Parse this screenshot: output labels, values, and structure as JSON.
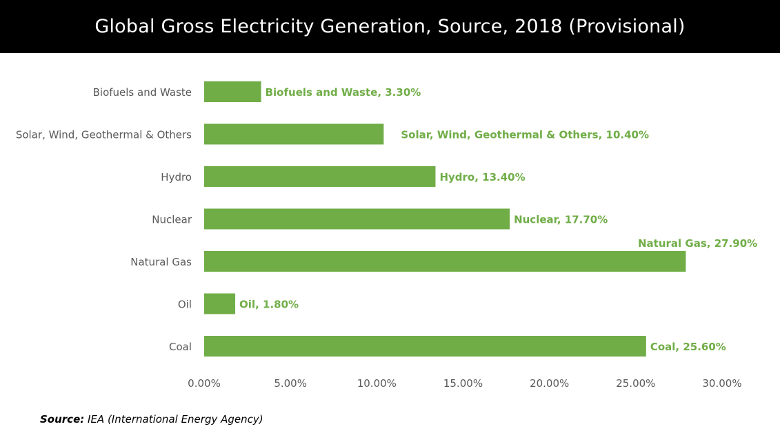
{
  "title": "Global Gross Electricity Generation, Source, 2018 (Provisional)",
  "source": {
    "label": "Source:",
    "text": " IEA (International Energy Agency)"
  },
  "colors": {
    "bar": "#70ad47",
    "label": "#70ad47",
    "category_text": "#595959",
    "tick_text": "#595959"
  },
  "chart_data": {
    "type": "bar",
    "orientation": "horizontal",
    "categories": [
      "Biofuels and Waste",
      "Solar, Wind, Geothermal & Others",
      "Hydro",
      "Nuclear",
      "Natural Gas",
      "Oil",
      "Coal"
    ],
    "values": [
      3.3,
      10.4,
      13.4,
      17.7,
      27.9,
      1.8,
      25.6
    ],
    "data_labels": [
      "Biofuels and Waste, 3.30%",
      "Solar, Wind, Geothermal & Others, 10.40%",
      "Hydro, 13.40%",
      "Nuclear, 17.70%",
      "Natural Gas, 27.90%",
      "Oil, 1.80%",
      "Coal, 25.60%"
    ],
    "x_ticks": [
      "0.00%",
      "5.00%",
      "10.00%",
      "15.00%",
      "20.00%",
      "25.00%",
      "30.00%"
    ],
    "xlim": [
      0,
      30
    ],
    "grid": false,
    "legend": "none"
  }
}
